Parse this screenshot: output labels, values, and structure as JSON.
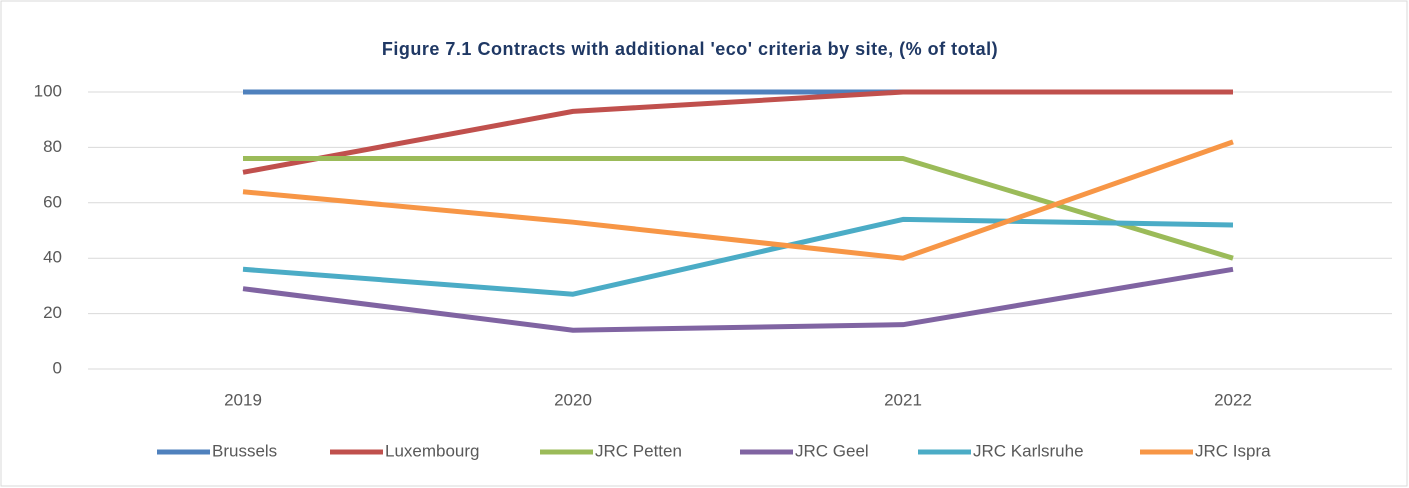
{
  "chart_data": {
    "type": "line",
    "title": "Figure 7.1 Contracts with additional 'eco' criteria by site,  (% of total)",
    "categories": [
      "2019",
      "2020",
      "2021",
      "2022"
    ],
    "series": [
      {
        "name": "Brussels",
        "color": "#4f81bd",
        "values": [
          100,
          100,
          100,
          100
        ]
      },
      {
        "name": "Luxembourg",
        "color": "#c0504d",
        "values": [
          71,
          93,
          100,
          100
        ]
      },
      {
        "name": "JRC Petten",
        "color": "#9bbb59",
        "values": [
          76,
          76,
          76,
          40
        ]
      },
      {
        "name": "JRC Geel",
        "color": "#8064a2",
        "values": [
          29,
          14,
          16,
          36
        ]
      },
      {
        "name": "JRC Karlsruhe",
        "color": "#4bacc6",
        "values": [
          36,
          27,
          54,
          52
        ]
      },
      {
        "name": "JRC Ispra",
        "color": "#f79646",
        "values": [
          64,
          53,
          40,
          82
        ]
      }
    ],
    "ylim": [
      0,
      100
    ],
    "yticks": [
      0,
      20,
      40,
      60,
      80,
      100
    ],
    "grid": true,
    "legend": "bottom"
  }
}
